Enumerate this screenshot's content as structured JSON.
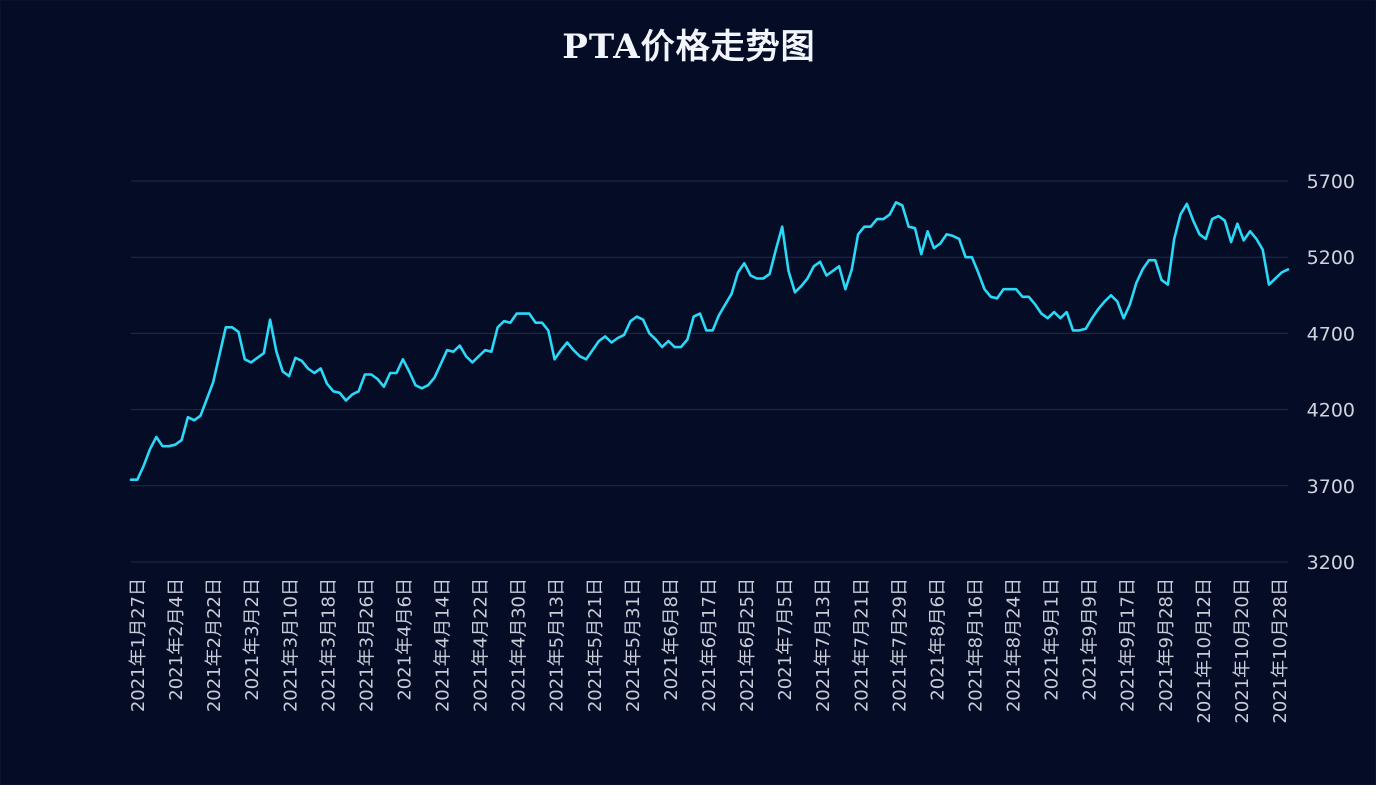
{
  "chart_data": {
    "type": "line",
    "title": "PTA价格走势图",
    "xlabel": "",
    "ylabel": "",
    "ylim": [
      3200,
      5700
    ],
    "yticks": [
      3200,
      3700,
      4200,
      4700,
      5200,
      5700
    ],
    "grid": true,
    "legend": "none",
    "x_tick_labels": [
      "2021年1月27日",
      "2021年2月4日",
      "2021年2月22日",
      "2021年3月2日",
      "2021年3月10日",
      "2021年3月18日",
      "2021年3月26日",
      "2021年4月6日",
      "2021年4月14日",
      "2021年4月22日",
      "2021年4月30日",
      "2021年5月13日",
      "2021年5月21日",
      "2021年5月31日",
      "2021年6月8日",
      "2021年6月17日",
      "2021年6月25日",
      "2021年7月5日",
      "2021年7月13日",
      "2021年7月21日",
      "2021年7月29日",
      "2021年8月6日",
      "2021年8月16日",
      "2021年8月24日",
      "2021年9月1日",
      "2021年9月9日",
      "2021年9月17日",
      "2021年9月28日",
      "2021年10月12日",
      "2021年10月20日",
      "2021年10月28日"
    ],
    "series": [
      {
        "name": "",
        "color": "#2ad8f8",
        "values": [
          3740,
          3740,
          3830,
          3940,
          4020,
          3960,
          3960,
          3970,
          4000,
          4150,
          4130,
          4160,
          4270,
          4380,
          4560,
          4740,
          4740,
          4710,
          4530,
          4510,
          4540,
          4570,
          4790,
          4580,
          4450,
          4420,
          4540,
          4520,
          4470,
          4440,
          4470,
          4370,
          4320,
          4310,
          4260,
          4300,
          4320,
          4430,
          4430,
          4400,
          4350,
          4440,
          4440,
          4530,
          4450,
          4360,
          4340,
          4360,
          4410,
          4500,
          4590,
          4580,
          4620,
          4550,
          4510,
          4550,
          4590,
          4580,
          4740,
          4780,
          4770,
          4830,
          4830,
          4830,
          4770,
          4770,
          4720,
          4530,
          4590,
          4640,
          4590,
          4550,
          4530,
          4590,
          4650,
          4680,
          4640,
          4670,
          4690,
          4780,
          4810,
          4790,
          4700,
          4660,
          4610,
          4650,
          4610,
          4610,
          4660,
          4810,
          4830,
          4720,
          4720,
          4820,
          4890,
          4960,
          5100,
          5160,
          5080,
          5060,
          5060,
          5090,
          5250,
          5400,
          5110,
          4970,
          5010,
          5060,
          5140,
          5170,
          5080,
          5110,
          5140,
          4990,
          5120,
          5350,
          5400,
          5400,
          5450,
          5450,
          5480,
          5560,
          5540,
          5400,
          5390,
          5220,
          5370,
          5260,
          5290,
          5350,
          5340,
          5320,
          5200,
          5200,
          5100,
          4990,
          4940,
          4930,
          4990,
          4990,
          4990,
          4940,
          4940,
          4890,
          4830,
          4800,
          4840,
          4800,
          4840,
          4720,
          4720,
          4730,
          4800,
          4860,
          4910,
          4950,
          4910,
          4800,
          4890,
          5030,
          5120,
          5180,
          5180,
          5050,
          5020,
          5320,
          5480,
          5550,
          5440,
          5350,
          5320,
          5450,
          5470,
          5440,
          5300,
          5420,
          5310,
          5370,
          5320,
          5250,
          5020,
          5060,
          5100,
          5120
        ]
      }
    ]
  }
}
